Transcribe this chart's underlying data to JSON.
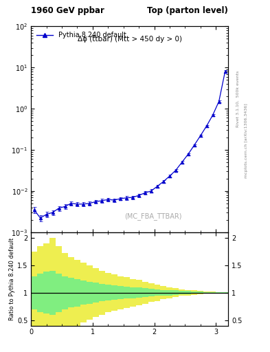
{
  "title_left": "1960 GeV ppbar",
  "title_right": "Top (parton level)",
  "plot_label": "Δϕ (t̅tbar) (Mtt > 450 dy > 0)",
  "watermark": "(MC_FBA_TTBAR)",
  "right_label_1": "Rivet 3.1.10,  500k events",
  "right_label_2": "mcplots.cern.ch [arXiv:1306.3436]",
  "legend_label": "Pythia 8.240 default",
  "line_color": "#0000cc",
  "marker": "^",
  "x_data": [
    0.05,
    0.15,
    0.25,
    0.35,
    0.45,
    0.55,
    0.65,
    0.75,
    0.85,
    0.95,
    1.05,
    1.15,
    1.25,
    1.35,
    1.45,
    1.55,
    1.65,
    1.75,
    1.85,
    1.95,
    2.05,
    2.15,
    2.25,
    2.35,
    2.45,
    2.55,
    2.65,
    2.75,
    2.85,
    2.95,
    3.05,
    3.15
  ],
  "y_data": [
    0.0035,
    0.0022,
    0.0027,
    0.003,
    0.0038,
    0.0042,
    0.005,
    0.0048,
    0.0048,
    0.005,
    0.0055,
    0.0058,
    0.0062,
    0.006,
    0.0065,
    0.0068,
    0.007,
    0.0078,
    0.009,
    0.01,
    0.013,
    0.017,
    0.023,
    0.032,
    0.05,
    0.078,
    0.13,
    0.22,
    0.38,
    0.7,
    1.5,
    8.0
  ],
  "y_err_low": [
    0.0006,
    0.0004,
    0.0004,
    0.0004,
    0.0005,
    0.0005,
    0.0006,
    0.0005,
    0.0005,
    0.0005,
    0.0006,
    0.0006,
    0.0006,
    0.0006,
    0.0006,
    0.0007,
    0.0007,
    0.0008,
    0.0009,
    0.001,
    0.001,
    0.001,
    0.002,
    0.002,
    0.003,
    0.005,
    0.008,
    0.012,
    0.02,
    0.04,
    0.1,
    0.5
  ],
  "y_err_high": [
    0.0006,
    0.0004,
    0.0004,
    0.0004,
    0.0005,
    0.0005,
    0.0006,
    0.0005,
    0.0005,
    0.0005,
    0.0006,
    0.0006,
    0.0006,
    0.0006,
    0.0006,
    0.0007,
    0.0007,
    0.0008,
    0.0009,
    0.001,
    0.001,
    0.001,
    0.002,
    0.002,
    0.003,
    0.005,
    0.008,
    0.012,
    0.02,
    0.04,
    0.1,
    0.5
  ],
  "xlim": [
    0.0,
    3.2
  ],
  "ylim_main": [
    0.001,
    100.0
  ],
  "ylim_ratio": [
    0.4,
    2.1
  ],
  "ylabel_ratio": "Ratio to Pythia 8.240 default",
  "ratio_x": [
    0.0,
    0.1,
    0.2,
    0.3,
    0.4,
    0.5,
    0.6,
    0.7,
    0.8,
    0.9,
    1.0,
    1.1,
    1.2,
    1.3,
    1.4,
    1.5,
    1.6,
    1.7,
    1.8,
    1.9,
    2.0,
    2.1,
    2.2,
    2.3,
    2.4,
    2.5,
    2.6,
    2.7,
    2.8,
    2.9,
    3.0,
    3.1,
    3.2
  ],
  "ratio_green_upper": [
    1.3,
    1.35,
    1.38,
    1.4,
    1.35,
    1.3,
    1.27,
    1.25,
    1.22,
    1.2,
    1.18,
    1.16,
    1.14,
    1.13,
    1.12,
    1.11,
    1.1,
    1.09,
    1.08,
    1.07,
    1.06,
    1.05,
    1.05,
    1.04,
    1.03,
    1.03,
    1.02,
    1.02,
    1.01,
    1.01,
    1.01,
    1.005,
    1.0
  ],
  "ratio_green_lower": [
    0.7,
    0.65,
    0.62,
    0.6,
    0.65,
    0.7,
    0.73,
    0.75,
    0.78,
    0.8,
    0.82,
    0.84,
    0.86,
    0.87,
    0.88,
    0.89,
    0.9,
    0.91,
    0.92,
    0.93,
    0.94,
    0.95,
    0.95,
    0.96,
    0.97,
    0.97,
    0.98,
    0.98,
    0.99,
    0.99,
    0.99,
    0.995,
    1.0
  ],
  "ratio_yellow_upper": [
    1.75,
    1.85,
    1.9,
    2.0,
    1.85,
    1.72,
    1.65,
    1.6,
    1.54,
    1.49,
    1.44,
    1.4,
    1.36,
    1.33,
    1.3,
    1.28,
    1.25,
    1.23,
    1.2,
    1.17,
    1.15,
    1.12,
    1.1,
    1.08,
    1.06,
    1.05,
    1.04,
    1.03,
    1.02,
    1.015,
    1.01,
    1.005,
    1.0
  ],
  "ratio_yellow_lower": [
    0.25,
    0.15,
    0.1,
    0.05,
    0.15,
    0.28,
    0.35,
    0.4,
    0.46,
    0.51,
    0.56,
    0.6,
    0.64,
    0.67,
    0.7,
    0.72,
    0.75,
    0.77,
    0.8,
    0.83,
    0.85,
    0.88,
    0.9,
    0.92,
    0.94,
    0.95,
    0.96,
    0.97,
    0.98,
    0.985,
    0.99,
    0.995,
    1.0
  ],
  "green_color": "#80ee80",
  "yellow_color": "#eeee50",
  "bg_color": "#ffffff"
}
